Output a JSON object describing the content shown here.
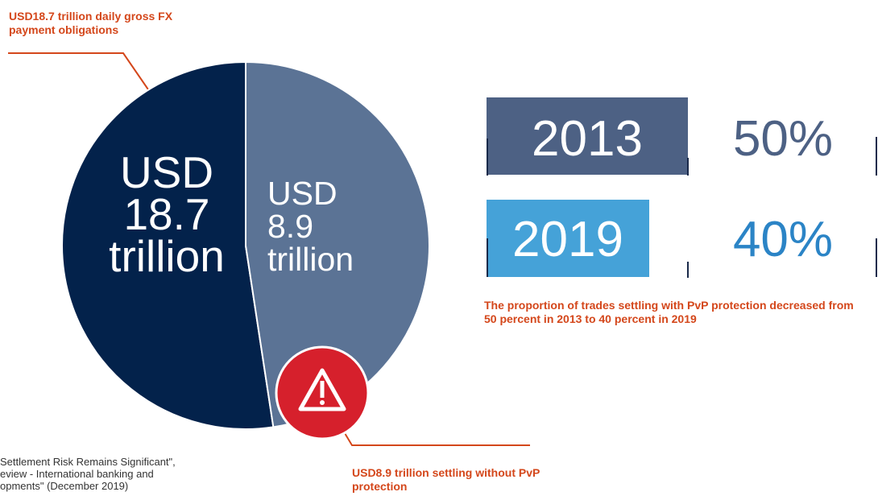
{
  "chart_data": {
    "type": "pie",
    "slices": [
      {
        "label_lines": [
          "USD",
          "18.7",
          "trillion"
        ],
        "value": 9.8,
        "color": "#03224b"
      },
      {
        "label_lines": [
          "USD",
          "8.9",
          "trillion"
        ],
        "value": 8.9,
        "color": "#5b7395"
      }
    ],
    "callouts": {
      "top": "USD18.7 trillion daily gross FX payment obligations",
      "bottom": "USD8.9 trillion settling without PvP protection"
    },
    "warning_color": "#d6202c"
  },
  "stats": [
    {
      "year": "2013",
      "percent": "50%",
      "year_color": "#4d6184"
    },
    {
      "year": "2019",
      "percent": "40%",
      "year_color": "#45a2d8"
    }
  ],
  "subtitle": "The proportion of trades settling with PvP protection decreased from 50 percent in 2013 to 40 percent in 2019",
  "source": {
    "line1": "Settlement Risk Remains Significant\",",
    "line2": "eview - International banking and",
    "line3": "opments\" (December 2019)"
  },
  "icons": {
    "warning": "warning-triangle-icon"
  }
}
